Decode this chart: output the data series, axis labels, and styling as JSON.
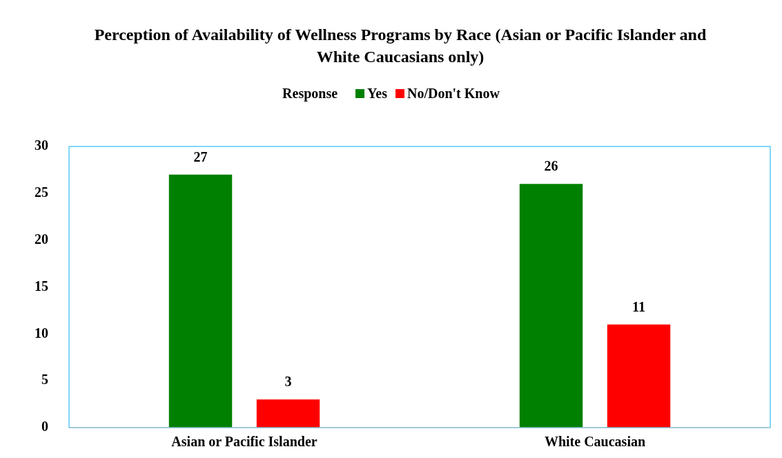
{
  "chart_data": {
    "type": "bar",
    "title": "Perception of Availability of Wellness Programs by Race (Asian or Pacific Islander and White Caucasians only)",
    "legend_title": "Response",
    "legend": "top",
    "categories": [
      "Asian or Pacific Islander",
      "White Caucasian"
    ],
    "series": [
      {
        "name": "Yes",
        "color": "#008000",
        "values": [
          27,
          26
        ]
      },
      {
        "name": "No/Don't Know",
        "color": "#ff0000",
        "values": [
          3,
          11
        ]
      }
    ],
    "ylim": [
      0,
      30
    ],
    "yticks": [
      0,
      5,
      10,
      15,
      20,
      25,
      30
    ],
    "grid": false,
    "data_labels": true
  }
}
